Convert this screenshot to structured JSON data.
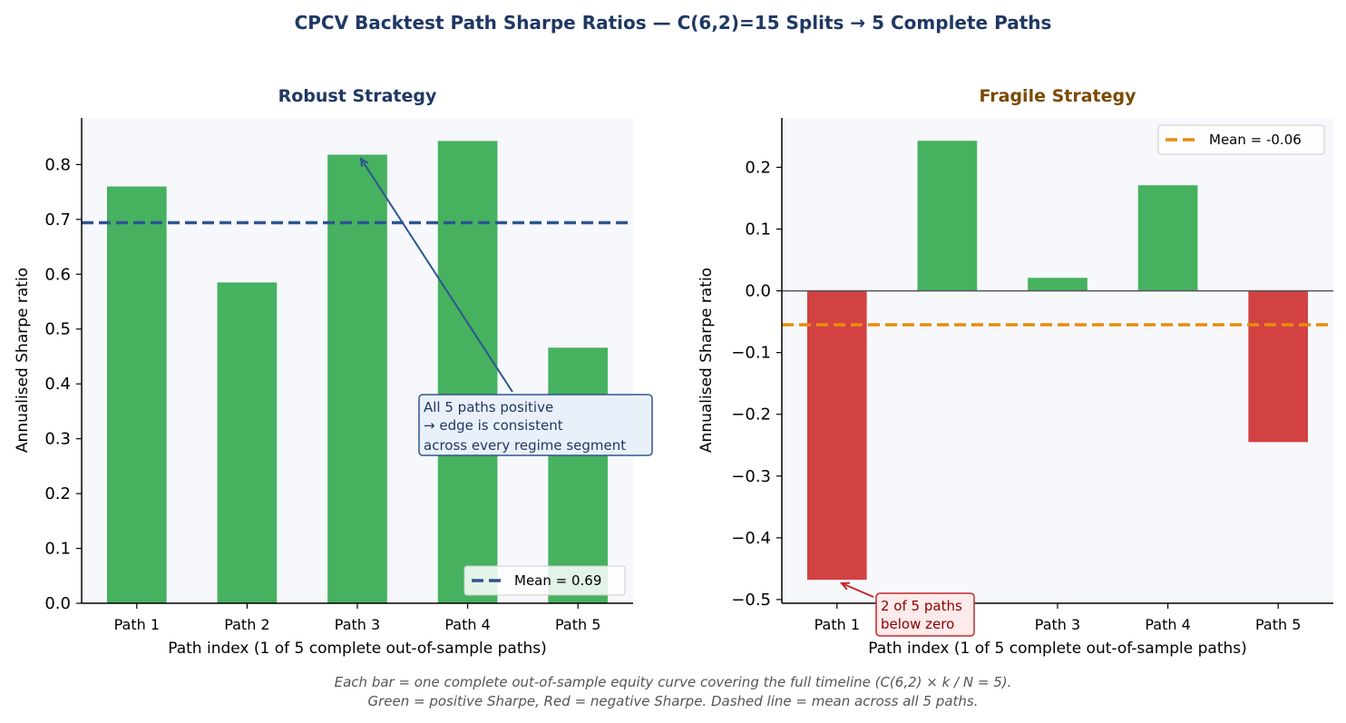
{
  "suptitle": "CPCV Backtest Path Sharpe Ratios — C(6,2)=15 Splits → 5 Complete Paths",
  "caption": {
    "line1": "Each bar = one complete out-of-sample equity curve covering the full timeline  (C(6,2) × k / N = 5).",
    "line2": "Green = positive Sharpe,  Red = negative Sharpe.  Dashed line = mean across all 5 paths."
  },
  "colors": {
    "positive": "#46b15f",
    "negative": "#d24242",
    "plot_bg": "#f6f8fc",
    "robust_mean": "#2e5591",
    "fragile_mean": "#e88c0b",
    "robust_title": "#1f3864",
    "fragile_title": "#7a4a00"
  },
  "chart_data": [
    {
      "type": "bar",
      "title": "Robust Strategy",
      "categories": [
        "Path 1",
        "Path 2",
        "Path 3",
        "Path 4",
        "Path 5"
      ],
      "values": [
        0.76,
        0.585,
        0.818,
        0.843,
        0.466
      ],
      "xlabel": "Path index  (1 of 5 complete out-of-sample paths)",
      "ylabel": "Annualised Sharpe ratio",
      "ylim": [
        0,
        0.885
      ],
      "yticks": [
        0.0,
        0.1,
        0.2,
        0.3,
        0.4,
        0.5,
        0.6,
        0.7,
        0.8
      ],
      "ytick_labels": [
        "0.0",
        "0.1",
        "0.2",
        "0.3",
        "0.4",
        "0.5",
        "0.6",
        "0.7",
        "0.8"
      ],
      "mean": 0.694,
      "mean_label": "Mean = 0.69",
      "legend": "bottom-right",
      "annotation": {
        "lines": [
          "All 5 paths positive",
          "→ edge is consistent",
          "across every regime segment"
        ],
        "target_category": "Path 3",
        "target_value": 0.818
      }
    },
    {
      "type": "bar",
      "title": "Fragile Strategy",
      "categories": [
        "Path 1",
        "Path 2",
        "Path 3",
        "Path 4",
        "Path 5"
      ],
      "values": [
        -0.468,
        0.243,
        0.021,
        0.171,
        -0.245
      ],
      "xlabel": "Path index  (1 of 5 complete out-of-sample paths)",
      "ylabel": "Annualised Sharpe ratio",
      "ylim": [
        -0.506,
        0.28
      ],
      "yticks": [
        -0.5,
        -0.4,
        -0.3,
        -0.2,
        -0.1,
        0.0,
        0.1,
        0.2
      ],
      "ytick_labels": [
        "−0.5",
        "−0.4",
        "−0.3",
        "−0.2",
        "−0.1",
        "0.0",
        "0.1",
        "0.2"
      ],
      "mean": -0.055,
      "mean_label": "Mean = -0.06",
      "legend": "top-right",
      "annotation": {
        "lines": [
          "2 of 5 paths",
          "below zero"
        ],
        "target_category": "Path 1",
        "target_value": -0.468
      }
    }
  ]
}
